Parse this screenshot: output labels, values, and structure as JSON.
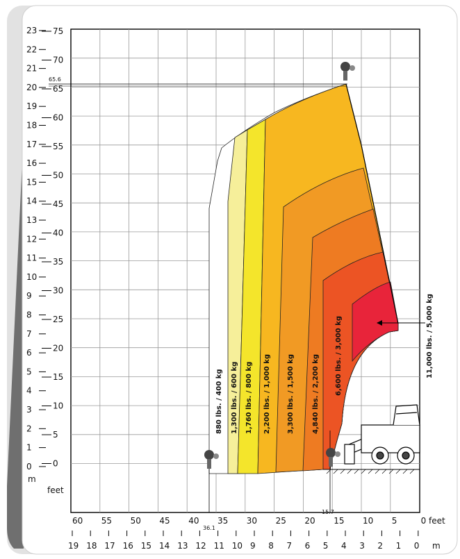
{
  "chart": {
    "unit_feet": "feet",
    "unit_m": "m",
    "x_feet_ticks": [
      "60",
      "55",
      "50",
      "45",
      "40",
      "35",
      "30",
      "25",
      "20",
      "15",
      "10",
      "5",
      "0 feet"
    ],
    "x_m_ticks": [
      "19",
      "18",
      "17",
      "16",
      "15",
      "14",
      "13",
      "12",
      "11",
      "10",
      "9",
      "8",
      "7",
      "6",
      "5",
      "4",
      "3",
      "2",
      "1",
      "0",
      "m"
    ],
    "y_feet_ticks": [
      "75",
      "70",
      "65",
      "60",
      "55",
      "50",
      "45",
      "40",
      "35",
      "30",
      "25",
      "20",
      "15",
      "10",
      "5",
      "0"
    ],
    "y_m_ticks": [
      "23",
      "22",
      "21",
      "20",
      "19",
      "18",
      "17",
      "16",
      "15",
      "14",
      "13",
      "12",
      "11",
      "10",
      "9",
      "8",
      "7",
      "6",
      "5",
      "4",
      "3",
      "2",
      "1",
      "0"
    ],
    "annotations": {
      "max_height": "65.6",
      "max_reach": "36.1",
      "min_reach": "15.7"
    },
    "zones": [
      {
        "label": "880 lbs. / 400 kg",
        "color": "#ffffff"
      },
      {
        "label": "1,300 lbs. / 600 kg",
        "color": "#f6ef9a"
      },
      {
        "label": "1,760 lbs. / 800 kg",
        "color": "#f4e52b"
      },
      {
        "label": "2,200 lbs. / 1,000 kg",
        "color": "#f7b720"
      },
      {
        "label": "3,300 lbs. / 1,500 kg",
        "color": "#f19a24"
      },
      {
        "label": "4,840 lbs. / 2,200 kg",
        "color": "#ee7b22"
      },
      {
        "label": "6,600 lbs. / 3,000 kg",
        "color": "#ec5424"
      },
      {
        "label": "11,000 lbs. / 5,000 kg",
        "color": "#e8243a"
      }
    ]
  }
}
